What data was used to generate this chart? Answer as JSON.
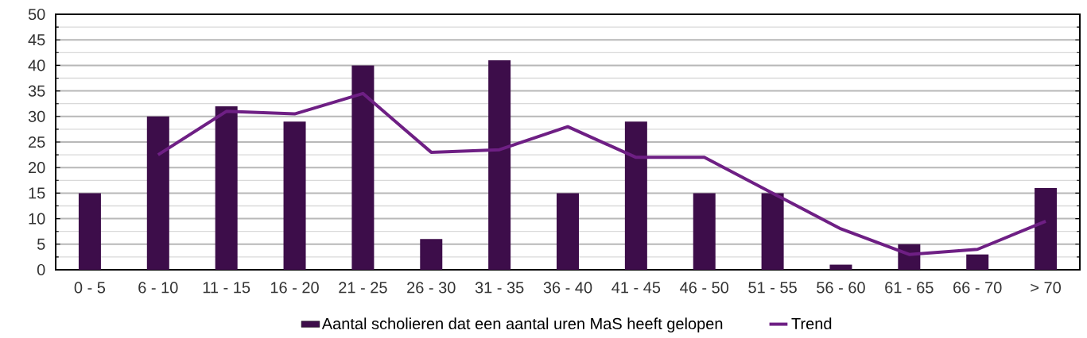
{
  "chart_data": {
    "type": "bar",
    "categories": [
      "0 - 5",
      "6 - 10",
      "11 - 15",
      "16 - 20",
      "21 - 25",
      "26 - 30",
      "31 - 35",
      "36 - 40",
      "41 - 45",
      "46 - 50",
      "51 - 55",
      "56 - 60",
      "61 - 65",
      "66 - 70",
      "> 70"
    ],
    "series": [
      {
        "name": "Aantal scholieren dat een aantal uren MaS heeft gelopen",
        "color": "#3d0d4a",
        "values": [
          15,
          30,
          32,
          29,
          40,
          6,
          41,
          15,
          29,
          15,
          15,
          1,
          5,
          3,
          16
        ]
      },
      {
        "name": "Trend",
        "type": "line",
        "color": "#6e1f84",
        "values": [
          null,
          22.5,
          31,
          30.5,
          34.5,
          23,
          23.5,
          28,
          22,
          22,
          15,
          8,
          3,
          4,
          9.5
        ]
      }
    ],
    "ylim": [
      0,
      50
    ],
    "yticks": [
      0,
      5,
      10,
      15,
      20,
      25,
      30,
      35,
      40,
      45,
      50
    ],
    "grid": "y",
    "legend": "bottom",
    "marker": "none",
    "line_style": "solid"
  }
}
